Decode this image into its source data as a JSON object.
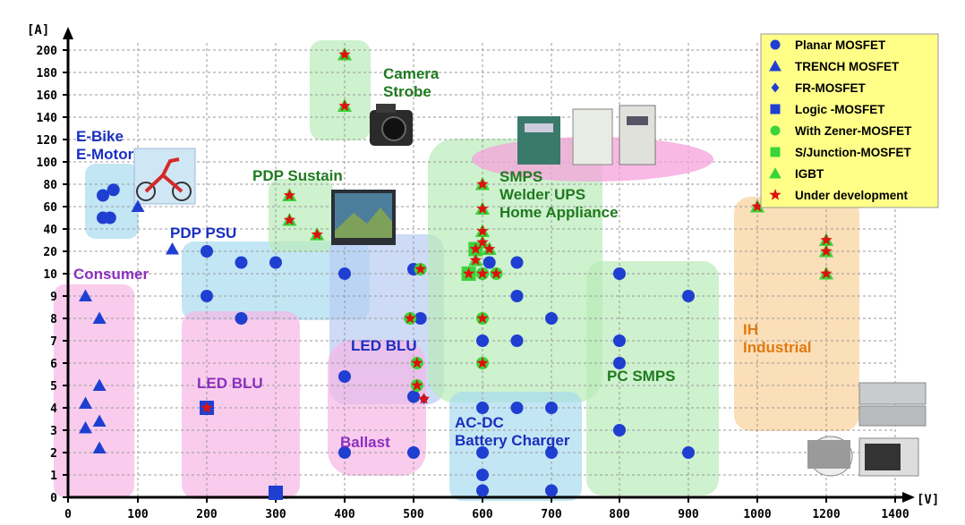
{
  "chart_data": {
    "type": "scatter",
    "xlabel": "[V]",
    "ylabel": "[A]",
    "x_ticks": [
      "0",
      "100",
      "200",
      "300",
      "400",
      "500",
      "600",
      "700",
      "800",
      "900",
      "1000",
      "1200",
      "1400"
    ],
    "y_ticks": [
      "0",
      "1",
      "2",
      "3",
      "4",
      "5",
      "6",
      "7",
      "8",
      "9",
      "10",
      "20",
      "40",
      "60",
      "80",
      "100",
      "120",
      "140",
      "160",
      "180",
      "200"
    ],
    "grid": true,
    "legend_position": "top-right",
    "legend": [
      {
        "key": "planar",
        "label": "Planar MOSFET",
        "marker": "circle",
        "color": "#1f3fd1"
      },
      {
        "key": "trench",
        "label": "TRENCH MOSFET",
        "marker": "triangle",
        "color": "#1f3fd1"
      },
      {
        "key": "fr",
        "label": "FR-MOSFET",
        "marker": "diamond",
        "color": "#1f3fd1"
      },
      {
        "key": "logic",
        "label": "Logic -MOSFET",
        "marker": "square",
        "color": "#1f3fd1"
      },
      {
        "key": "zener",
        "label": "With Zener-MOSFET",
        "marker": "circle",
        "color": "#3ad43a"
      },
      {
        "key": "sj",
        "label": "S/Junction-MOSFET",
        "marker": "square",
        "color": "#3ad43a"
      },
      {
        "key": "igbt",
        "label": "IGBT",
        "marker": "triangle",
        "color": "#3ad43a"
      },
      {
        "key": "dev",
        "label": "Under development",
        "marker": "star",
        "color": "#e01010"
      }
    ],
    "regions": [
      {
        "label": "E-Bike\nE-Motor",
        "color": "#a8dbef",
        "label_color": "#1a2fc0"
      },
      {
        "label": "Consumer",
        "color": "#f6b6e6",
        "label_color": "#8b2fc0"
      },
      {
        "label": "PDP PSU",
        "color": "#a8dbef",
        "label_color": "#1a2fc0"
      },
      {
        "label": "LED BLU",
        "color": "#f6b6e6",
        "label_color": "#8b2fc0"
      },
      {
        "label": "PDP Sustain",
        "color": "#b9ebb9",
        "label_color": "#1f7a1f"
      },
      {
        "label": "Camera\nStrobe",
        "color": "#b9ebb9",
        "label_color": "#1f7a1f"
      },
      {
        "label": "LED BLU",
        "color": "#b8ccf2",
        "label_color": "#1a2fc0"
      },
      {
        "label": "Ballast",
        "color": "#f6b6e6",
        "label_color": "#8b2fc0"
      },
      {
        "label": "SMPS\nWelder UPS\nHome Appliance",
        "color": "#b9ebb9",
        "label_color": "#1f7a1f"
      },
      {
        "label": "AC-DC\nBattery Charger",
        "color": "#a8dbef",
        "label_color": "#1a2fc0"
      },
      {
        "label": "PC SMPS",
        "color": "#b9ebb9",
        "label_color": "#1f7a1f"
      },
      {
        "label": "IH\nIndustrial",
        "color": "#f9d29a",
        "label_color": "#e07a10"
      }
    ],
    "points": [
      {
        "x": 50,
        "y": 70,
        "type": "planar"
      },
      {
        "x": 65,
        "y": 75,
        "type": "planar"
      },
      {
        "x": 50,
        "y": 50,
        "type": "planar"
      },
      {
        "x": 60,
        "y": 50,
        "type": "planar"
      },
      {
        "x": 100,
        "y": 60,
        "type": "trench"
      },
      {
        "x": 150,
        "y": 22,
        "type": "trench"
      },
      {
        "x": 25,
        "y": 9,
        "type": "trench"
      },
      {
        "x": 45,
        "y": 8,
        "type": "trench"
      },
      {
        "x": 45,
        "y": 5,
        "type": "trench"
      },
      {
        "x": 25,
        "y": 4.2,
        "type": "trench"
      },
      {
        "x": 45,
        "y": 3.4,
        "type": "trench"
      },
      {
        "x": 25,
        "y": 3.1,
        "type": "trench"
      },
      {
        "x": 45,
        "y": 2.2,
        "type": "trench"
      },
      {
        "x": 200,
        "y": 20,
        "type": "planar"
      },
      {
        "x": 250,
        "y": 15,
        "type": "planar"
      },
      {
        "x": 300,
        "y": 15,
        "type": "planar"
      },
      {
        "x": 400,
        "y": 10,
        "type": "planar"
      },
      {
        "x": 200,
        "y": 9,
        "type": "planar"
      },
      {
        "x": 250,
        "y": 8,
        "type": "planar"
      },
      {
        "x": 200,
        "y": 4,
        "type": "logic"
      },
      {
        "x": 200,
        "y": 4,
        "type": "dev"
      },
      {
        "x": 300,
        "y": 0.2,
        "type": "logic"
      },
      {
        "x": 320,
        "y": 70,
        "type": "igbt"
      },
      {
        "x": 320,
        "y": 70,
        "type": "dev"
      },
      {
        "x": 320,
        "y": 48,
        "type": "igbt"
      },
      {
        "x": 320,
        "y": 48,
        "type": "dev"
      },
      {
        "x": 360,
        "y": 35,
        "type": "igbt"
      },
      {
        "x": 360,
        "y": 35,
        "type": "dev"
      },
      {
        "x": 400,
        "y": 196,
        "type": "igbt"
      },
      {
        "x": 400,
        "y": 196,
        "type": "dev"
      },
      {
        "x": 400,
        "y": 150,
        "type": "igbt"
      },
      {
        "x": 400,
        "y": 150,
        "type": "dev"
      },
      {
        "x": 400,
        "y": 5.4,
        "type": "planar"
      },
      {
        "x": 400,
        "y": 2,
        "type": "planar"
      },
      {
        "x": 500,
        "y": 2,
        "type": "planar"
      },
      {
        "x": 500,
        "y": 12,
        "type": "planar"
      },
      {
        "x": 510,
        "y": 12,
        "type": "zener"
      },
      {
        "x": 510,
        "y": 12,
        "type": "dev"
      },
      {
        "x": 495,
        "y": 8,
        "type": "zener"
      },
      {
        "x": 495,
        "y": 8,
        "type": "dev"
      },
      {
        "x": 510,
        "y": 8,
        "type": "planar"
      },
      {
        "x": 505,
        "y": 6,
        "type": "zener"
      },
      {
        "x": 505,
        "y": 6,
        "type": "dev"
      },
      {
        "x": 505,
        "y": 5,
        "type": "zener"
      },
      {
        "x": 505,
        "y": 5,
        "type": "dev"
      },
      {
        "x": 500,
        "y": 4.5,
        "type": "planar"
      },
      {
        "x": 515,
        "y": 4.4,
        "type": "fr"
      },
      {
        "x": 515,
        "y": 4.4,
        "type": "dev"
      },
      {
        "x": 600,
        "y": 80,
        "type": "igbt"
      },
      {
        "x": 600,
        "y": 80,
        "type": "dev"
      },
      {
        "x": 600,
        "y": 58,
        "type": "igbt"
      },
      {
        "x": 600,
        "y": 58,
        "type": "dev"
      },
      {
        "x": 600,
        "y": 38,
        "type": "igbt"
      },
      {
        "x": 600,
        "y": 38,
        "type": "dev"
      },
      {
        "x": 600,
        "y": 28,
        "type": "igbt"
      },
      {
        "x": 600,
        "y": 28,
        "type": "dev"
      },
      {
        "x": 590,
        "y": 22,
        "type": "sj"
      },
      {
        "x": 590,
        "y": 22,
        "type": "dev"
      },
      {
        "x": 610,
        "y": 22,
        "type": "igbt"
      },
      {
        "x": 610,
        "y": 22,
        "type": "dev"
      },
      {
        "x": 590,
        "y": 16,
        "type": "igbt"
      },
      {
        "x": 590,
        "y": 16,
        "type": "dev"
      },
      {
        "x": 610,
        "y": 15,
        "type": "planar"
      },
      {
        "x": 580,
        "y": 10,
        "type": "sj"
      },
      {
        "x": 580,
        "y": 10,
        "type": "dev"
      },
      {
        "x": 600,
        "y": 10,
        "type": "zener"
      },
      {
        "x": 600,
        "y": 10,
        "type": "planar"
      },
      {
        "x": 600,
        "y": 10,
        "type": "dev"
      },
      {
        "x": 620,
        "y": 10,
        "type": "zener"
      },
      {
        "x": 620,
        "y": 10,
        "type": "dev"
      },
      {
        "x": 650,
        "y": 15,
        "type": "planar"
      },
      {
        "x": 650,
        "y": 9,
        "type": "planar"
      },
      {
        "x": 600,
        "y": 8,
        "type": "zener"
      },
      {
        "x": 600,
        "y": 8,
        "type": "dev"
      },
      {
        "x": 700,
        "y": 8,
        "type": "planar"
      },
      {
        "x": 600,
        "y": 7,
        "type": "planar"
      },
      {
        "x": 650,
        "y": 7,
        "type": "planar"
      },
      {
        "x": 600,
        "y": 6,
        "type": "zener"
      },
      {
        "x": 600,
        "y": 6,
        "type": "dev"
      },
      {
        "x": 600,
        "y": 4,
        "type": "planar"
      },
      {
        "x": 650,
        "y": 4,
        "type": "planar"
      },
      {
        "x": 700,
        "y": 4,
        "type": "planar"
      },
      {
        "x": 600,
        "y": 2,
        "type": "planar"
      },
      {
        "x": 700,
        "y": 2,
        "type": "planar"
      },
      {
        "x": 600,
        "y": 1,
        "type": "planar"
      },
      {
        "x": 600,
        "y": 0.3,
        "type": "planar"
      },
      {
        "x": 700,
        "y": 0.3,
        "type": "planar"
      },
      {
        "x": 800,
        "y": 10,
        "type": "planar"
      },
      {
        "x": 900,
        "y": 9,
        "type": "planar"
      },
      {
        "x": 800,
        "y": 7,
        "type": "planar"
      },
      {
        "x": 800,
        "y": 6,
        "type": "planar"
      },
      {
        "x": 800,
        "y": 3,
        "type": "planar"
      },
      {
        "x": 900,
        "y": 2,
        "type": "planar"
      },
      {
        "x": 1000,
        "y": 60,
        "type": "igbt"
      },
      {
        "x": 1000,
        "y": 60,
        "type": "dev"
      },
      {
        "x": 1200,
        "y": 30,
        "type": "igbt"
      },
      {
        "x": 1200,
        "y": 30,
        "type": "dev"
      },
      {
        "x": 1200,
        "y": 20,
        "type": "igbt"
      },
      {
        "x": 1200,
        "y": 20,
        "type": "dev"
      },
      {
        "x": 1200,
        "y": 10,
        "type": "igbt"
      },
      {
        "x": 1200,
        "y": 10,
        "type": "dev"
      }
    ]
  }
}
